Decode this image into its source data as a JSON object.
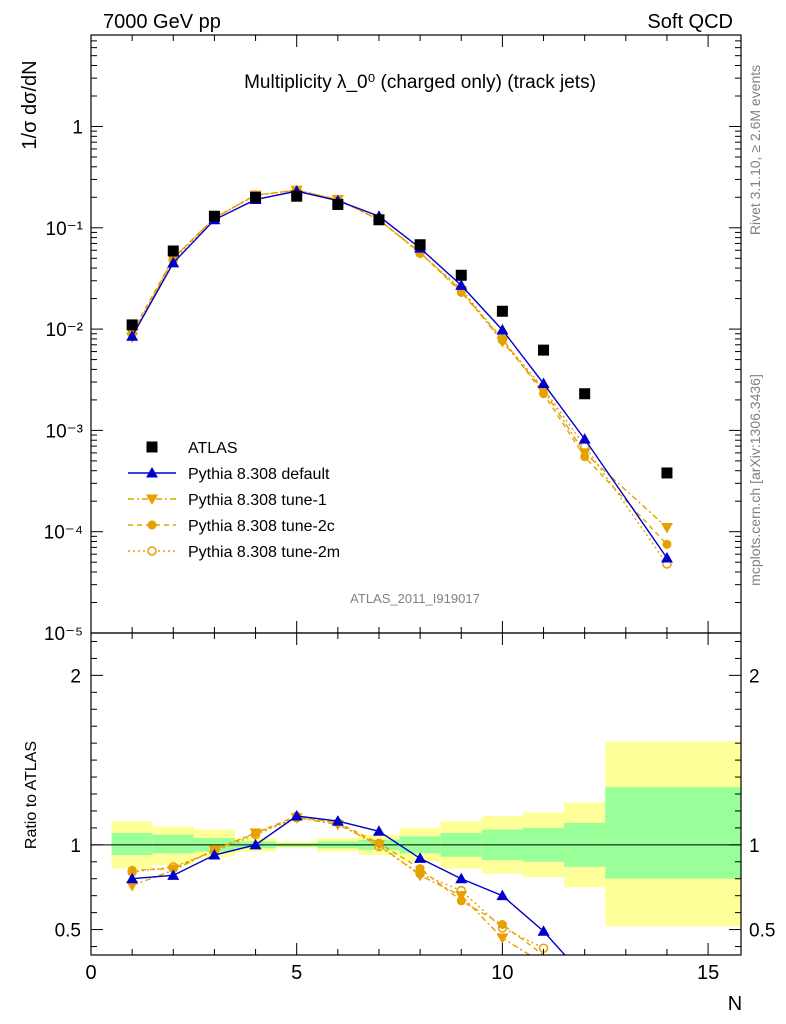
{
  "header": {
    "left": "7000 GeV pp",
    "right": "Soft QCD"
  },
  "side_labels": {
    "rivet": "Rivet 3.1.10, ≥ 2.6M events",
    "mcplots": "mcplots.cern.ch [arXiv:1306.3436]"
  },
  "analysis_id": "ATLAS_2011_I919017",
  "colors": {
    "data": "#000000",
    "default": "#0000cc",
    "tune": "#e6a000",
    "band_inner": "#99ff99",
    "band_outer": "#ffff99"
  },
  "chart_data": [
    {
      "type": "line",
      "panel": "main",
      "title": "Multiplicity λ_0⁰ (charged only) (track jets)",
      "ylabel": "1/σ dσ/dN",
      "yscale": "log",
      "ylim": [
        1e-05,
        8
      ],
      "xlim": [
        0,
        15.8
      ],
      "legend_position": "lower-left",
      "y_tick_labels": [
        "10⁻⁵",
        "10⁻⁴",
        "10⁻³",
        "10⁻²",
        "10⁻¹",
        "1"
      ],
      "series": [
        {
          "name": "ATLAS",
          "marker": "square",
          "x": [
            1,
            2,
            3,
            4,
            5,
            6,
            7,
            8,
            9,
            10,
            11,
            12,
            14
          ],
          "y": [
            0.011,
            0.059,
            0.13,
            0.2,
            0.205,
            0.17,
            0.12,
            0.068,
            0.034,
            0.015,
            0.0062,
            0.0023,
            0.00038
          ]
        },
        {
          "name": "Pythia 8.308 default",
          "marker": "triangle-up",
          "x": [
            1,
            2,
            3,
            4,
            5,
            6,
            7,
            8,
            9,
            10,
            11,
            12,
            14
          ],
          "y": [
            0.0085,
            0.045,
            0.12,
            0.19,
            0.23,
            0.185,
            0.13,
            0.063,
            0.027,
            0.0098,
            0.0029,
            0.00082,
            5.5e-05
          ]
        },
        {
          "name": "Pythia 8.308 tune-1",
          "marker": "triangle-down",
          "x": [
            1,
            2,
            3,
            4,
            5,
            6,
            7,
            8,
            9,
            10,
            11,
            12,
            14
          ],
          "y": [
            0.0083,
            0.05,
            0.125,
            0.21,
            0.235,
            0.19,
            0.12,
            0.057,
            0.024,
            0.0075,
            0.0025,
            0.0006,
            0.00011
          ]
        },
        {
          "name": "Pythia 8.308 tune-2c",
          "marker": "circle",
          "x": [
            1,
            2,
            3,
            4,
            5,
            6,
            7,
            8,
            9,
            10,
            11,
            12,
            14
          ],
          "y": [
            0.0093,
            0.05,
            0.125,
            0.21,
            0.235,
            0.19,
            0.12,
            0.057,
            0.023,
            0.008,
            0.0023,
            0.00055,
            7.5e-05
          ]
        },
        {
          "name": "Pythia 8.308 tune-2m",
          "marker": "circle-open",
          "x": [
            1,
            2,
            3,
            4,
            5,
            6,
            7,
            8,
            9,
            10,
            11,
            12,
            14
          ],
          "y": [
            0.009,
            0.048,
            0.125,
            0.21,
            0.235,
            0.19,
            0.12,
            0.056,
            0.025,
            0.0078,
            0.0026,
            0.0007,
            4.8e-05
          ]
        }
      ]
    },
    {
      "type": "line",
      "panel": "ratio",
      "ylabel": "Ratio to ATLAS",
      "xlabel": "N",
      "ylim": [
        0.35,
        2.25
      ],
      "xlim": [
        0,
        15.8
      ],
      "x_tick_labels": [
        "0",
        "5",
        "10",
        "15"
      ],
      "y_tick_labels": [
        "0.5",
        "1",
        "2"
      ],
      "bands": [
        {
          "x": [
            0.5,
            1.5
          ],
          "inner": [
            0.94,
            1.07
          ],
          "outer": [
            0.86,
            1.14
          ]
        },
        {
          "x": [
            1.5,
            2.5
          ],
          "inner": [
            0.95,
            1.06
          ],
          "outer": [
            0.88,
            1.11
          ]
        },
        {
          "x": [
            2.5,
            3.5
          ],
          "inner": [
            0.96,
            1.04
          ],
          "outer": [
            0.93,
            1.09
          ]
        },
        {
          "x": [
            3.5,
            4.5
          ],
          "inner": [
            0.98,
            1.02
          ],
          "outer": [
            0.96,
            1.04
          ]
        },
        {
          "x": [
            4.5,
            5.5
          ],
          "inner": [
            0.99,
            1.01
          ],
          "outer": [
            0.98,
            1.02
          ]
        },
        {
          "x": [
            5.5,
            6.5
          ],
          "inner": [
            0.98,
            1.02
          ],
          "outer": [
            0.96,
            1.04
          ]
        },
        {
          "x": [
            6.5,
            7.5
          ],
          "inner": [
            0.97,
            1.03
          ],
          "outer": [
            0.94,
            1.06
          ]
        },
        {
          "x": [
            7.5,
            8.5
          ],
          "inner": [
            0.95,
            1.05
          ],
          "outer": [
            0.9,
            1.1
          ]
        },
        {
          "x": [
            8.5,
            9.5
          ],
          "inner": [
            0.93,
            1.07
          ],
          "outer": [
            0.86,
            1.14
          ]
        },
        {
          "x": [
            9.5,
            10.5
          ],
          "inner": [
            0.91,
            1.09
          ],
          "outer": [
            0.83,
            1.17
          ]
        },
        {
          "x": [
            10.5,
            11.5
          ],
          "inner": [
            0.9,
            1.1
          ],
          "outer": [
            0.81,
            1.19
          ]
        },
        {
          "x": [
            11.5,
            12.5
          ],
          "inner": [
            0.87,
            1.13
          ],
          "outer": [
            0.75,
            1.25
          ]
        },
        {
          "x": [
            12.5,
            15.8
          ],
          "inner": [
            0.8,
            1.34
          ],
          "outer": [
            0.52,
            1.61
          ]
        }
      ],
      "series": [
        {
          "name": "Pythia 8.308 default",
          "marker": "triangle-up",
          "x": [
            1,
            2,
            3,
            4,
            5,
            6,
            7,
            8,
            9,
            10,
            11,
            12
          ],
          "y": [
            0.8,
            0.82,
            0.94,
            1.0,
            1.17,
            1.14,
            1.08,
            0.92,
            0.8,
            0.7,
            0.49,
            0.22
          ]
        },
        {
          "name": "Pythia 8.308 tune-1",
          "marker": "triangle-down",
          "x": [
            1,
            2,
            3,
            4,
            5,
            6,
            7,
            8,
            9,
            10,
            11
          ],
          "y": [
            0.76,
            0.85,
            0.97,
            1.07,
            1.16,
            1.12,
            1.0,
            0.82,
            0.7,
            0.45,
            0.3
          ]
        },
        {
          "name": "Pythia 8.308 tune-2c",
          "marker": "circle",
          "x": [
            1,
            2,
            3,
            4,
            5,
            6,
            7,
            8,
            9,
            10,
            11
          ],
          "y": [
            0.85,
            0.86,
            0.97,
            1.07,
            1.17,
            1.13,
            1.01,
            0.86,
            0.67,
            0.53,
            0.35
          ]
        },
        {
          "name": "Pythia 8.308 tune-2m",
          "marker": "circle-open",
          "x": [
            1,
            2,
            3,
            4,
            5,
            6,
            7,
            8,
            9,
            10,
            11
          ],
          "y": [
            0.84,
            0.87,
            0.96,
            1.06,
            1.16,
            1.13,
            0.99,
            0.83,
            0.73,
            0.51,
            0.39
          ]
        }
      ]
    }
  ]
}
